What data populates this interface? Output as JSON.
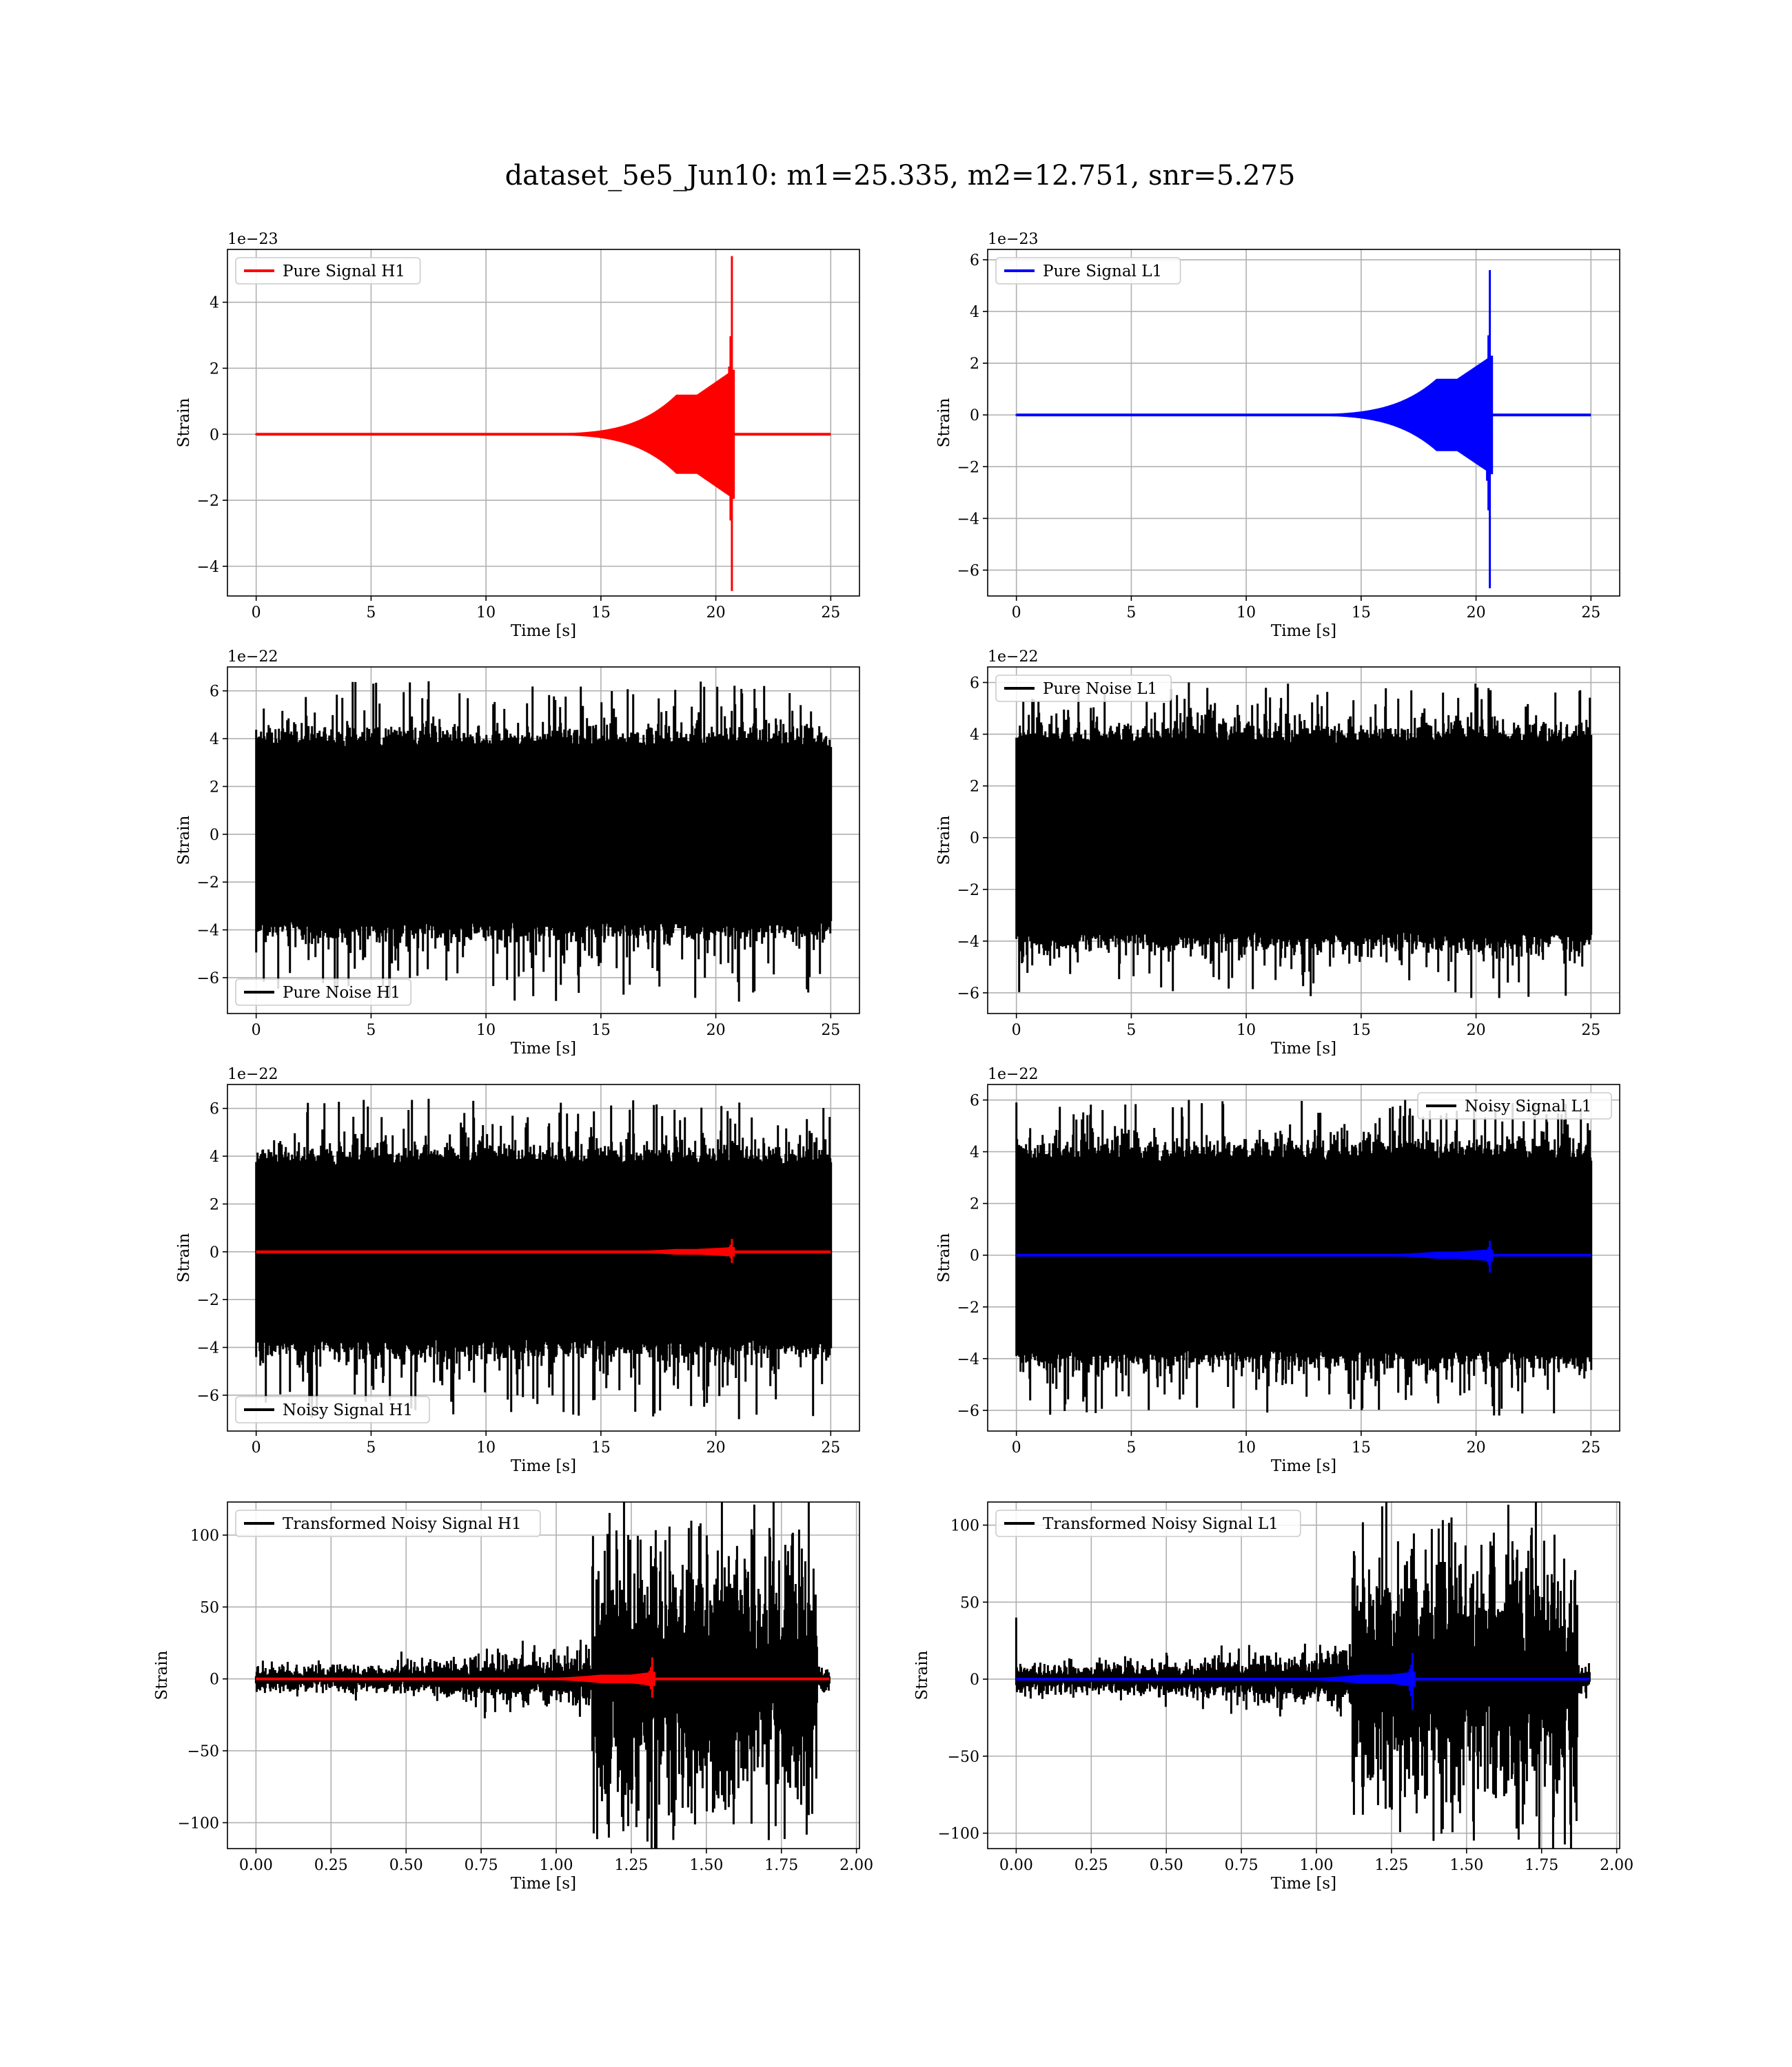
{
  "figure": {
    "title": "dataset_5e5_Jun10: m1=25.335, m2=12.751, snr=5.275"
  },
  "colors": {
    "h1_signal": "#ff0000",
    "l1_signal": "#0000ff",
    "noise": "#000000",
    "grid": "#b0b0b0"
  },
  "chart_data": [
    {
      "id": "h1-pure-signal",
      "type": "line",
      "xlabel": "Time [s]",
      "ylabel": "Strain",
      "offset_text": "1e−23",
      "xlim": [
        -1.25,
        26.25
      ],
      "ylim": [
        -4.9,
        5.6
      ],
      "xticks": [
        0,
        5,
        10,
        15,
        20,
        25
      ],
      "xtick_labels": [
        "0",
        "5",
        "10",
        "15",
        "20",
        "25"
      ],
      "yticks": [
        -4,
        -2,
        0,
        2,
        4
      ],
      "ytick_labels": [
        "−4",
        "−2",
        "0",
        "2",
        "4"
      ],
      "grid": true,
      "legend_loc": "upper left",
      "series": [
        {
          "name": "Pure Signal H1",
          "color": "#ff0000",
          "kind": "chirp",
          "t_start": 0,
          "t_end": 25,
          "t_merge": 20.7,
          "amp_max": 5.4,
          "amp_min": 4.75,
          "plateau_amp": 1.2,
          "plateau_range": [
            18.3,
            19.2
          ]
        }
      ]
    },
    {
      "id": "l1-pure-signal",
      "type": "line",
      "xlabel": "Time [s]",
      "ylabel": "Strain",
      "offset_text": "1e−23",
      "xlim": [
        -1.25,
        26.25
      ],
      "ylim": [
        -7.0,
        6.4
      ],
      "xticks": [
        0,
        5,
        10,
        15,
        20,
        25
      ],
      "xtick_labels": [
        "0",
        "5",
        "10",
        "15",
        "20",
        "25"
      ],
      "yticks": [
        -6,
        -4,
        -2,
        0,
        2,
        4,
        6
      ],
      "ytick_labels": [
        "−6",
        "−4",
        "−2",
        "0",
        "2",
        "4",
        "6"
      ],
      "grid": true,
      "legend_loc": "upper left",
      "series": [
        {
          "name": "Pure Signal L1",
          "color": "#0000ff",
          "kind": "chirp",
          "t_start": 0,
          "t_end": 25,
          "t_merge": 20.6,
          "amp_max": 5.6,
          "amp_min": 6.7,
          "plateau_amp": 1.4,
          "plateau_range": [
            18.3,
            19.2
          ]
        }
      ]
    },
    {
      "id": "h1-pure-noise",
      "type": "line",
      "xlabel": "Time [s]",
      "ylabel": "Strain",
      "offset_text": "1e−22",
      "xlim": [
        -1.25,
        26.25
      ],
      "ylim": [
        -7.5,
        7.0
      ],
      "xticks": [
        0,
        5,
        10,
        15,
        20,
        25
      ],
      "xtick_labels": [
        "0",
        "5",
        "10",
        "15",
        "20",
        "25"
      ],
      "yticks": [
        -6,
        -4,
        -2,
        0,
        2,
        4,
        6
      ],
      "ytick_labels": [
        "−6",
        "−4",
        "−2",
        "0",
        "2",
        "4",
        "6"
      ],
      "grid": true,
      "legend_loc": "lower left",
      "series": [
        {
          "name": "Pure Noise H1",
          "color": "#000000",
          "kind": "noise",
          "t_start": 0,
          "t_end": 25,
          "core_amp": 3.8,
          "peak_max": 6.4,
          "peak_min": 7.0
        }
      ]
    },
    {
      "id": "l1-pure-noise",
      "type": "line",
      "xlabel": "Time [s]",
      "ylabel": "Strain",
      "offset_text": "1e−22",
      "xlim": [
        -1.25,
        26.25
      ],
      "ylim": [
        -6.8,
        6.6
      ],
      "xticks": [
        0,
        5,
        10,
        15,
        20,
        25
      ],
      "xtick_labels": [
        "0",
        "5",
        "10",
        "15",
        "20",
        "25"
      ],
      "yticks": [
        -6,
        -4,
        -2,
        0,
        2,
        4,
        6
      ],
      "ytick_labels": [
        "−6",
        "−4",
        "−2",
        "0",
        "2",
        "4",
        "6"
      ],
      "grid": true,
      "legend_loc": "upper left",
      "series": [
        {
          "name": "Pure Noise L1",
          "color": "#000000",
          "kind": "noise",
          "t_start": 0,
          "t_end": 25,
          "core_amp": 3.8,
          "peak_max": 6.0,
          "peak_min": 6.2
        }
      ]
    },
    {
      "id": "h1-noisy-signal",
      "type": "line",
      "xlabel": "Time [s]",
      "ylabel": "Strain",
      "offset_text": "1e−22",
      "xlim": [
        -1.25,
        26.25
      ],
      "ylim": [
        -7.5,
        7.0
      ],
      "xticks": [
        0,
        5,
        10,
        15,
        20,
        25
      ],
      "xtick_labels": [
        "0",
        "5",
        "10",
        "15",
        "20",
        "25"
      ],
      "yticks": [
        -6,
        -4,
        -2,
        0,
        2,
        4,
        6
      ],
      "ytick_labels": [
        "−6",
        "−4",
        "−2",
        "0",
        "2",
        "4",
        "6"
      ],
      "grid": true,
      "legend_loc": "lower left",
      "series": [
        {
          "name": "Noisy Signal H1",
          "color": "#000000",
          "kind": "noise",
          "t_start": 0,
          "t_end": 25,
          "core_amp": 3.8,
          "peak_max": 6.4,
          "peak_min": 7.0
        },
        {
          "color": "#ff0000",
          "kind": "chirp",
          "t_start": 0,
          "t_end": 25,
          "t_merge": 20.7,
          "amp_max": 0.54,
          "amp_min": 0.47,
          "plateau_amp": 0.12,
          "plateau_range": [
            18.3,
            19.2
          ]
        }
      ]
    },
    {
      "id": "l1-noisy-signal",
      "type": "line",
      "xlabel": "Time [s]",
      "ylabel": "Strain",
      "offset_text": "1e−22",
      "xlim": [
        -1.25,
        26.25
      ],
      "ylim": [
        -6.8,
        6.6
      ],
      "xticks": [
        0,
        5,
        10,
        15,
        20,
        25
      ],
      "xtick_labels": [
        "0",
        "5",
        "10",
        "15",
        "20",
        "25"
      ],
      "yticks": [
        -6,
        -4,
        -2,
        0,
        2,
        4,
        6
      ],
      "ytick_labels": [
        "−6",
        "−4",
        "−2",
        "0",
        "2",
        "4",
        "6"
      ],
      "grid": true,
      "legend_loc": "upper right",
      "series": [
        {
          "name": "Noisy Signal L1",
          "color": "#000000",
          "kind": "noise",
          "t_start": 0,
          "t_end": 25,
          "core_amp": 3.8,
          "peak_max": 6.0,
          "peak_min": 6.2
        },
        {
          "color": "#0000ff",
          "kind": "chirp",
          "t_start": 0,
          "t_end": 25,
          "t_merge": 20.6,
          "amp_max": 0.56,
          "amp_min": 0.67,
          "plateau_amp": 0.14,
          "plateau_range": [
            18.3,
            19.2
          ]
        }
      ]
    },
    {
      "id": "h1-transformed",
      "type": "line",
      "xlabel": "Time [s]",
      "ylabel": "Strain",
      "offset_text": "",
      "xlim": [
        -0.095,
        2.01
      ],
      "ylim": [
        -118,
        123
      ],
      "xticks": [
        0,
        0.25,
        0.5,
        0.75,
        1.0,
        1.25,
        1.5,
        1.75,
        2.0
      ],
      "xtick_labels": [
        "0.00",
        "0.25",
        "0.50",
        "0.75",
        "1.00",
        "1.25",
        "1.50",
        "1.75",
        "2.00"
      ],
      "yticks": [
        -100,
        -50,
        0,
        50,
        100
      ],
      "ytick_labels": [
        "−100",
        "−50",
        "0",
        "50",
        "100"
      ],
      "grid": true,
      "legend_loc": "upper left",
      "series": [
        {
          "name": "Transformed Noisy Signal H1",
          "color": "#000000",
          "kind": "whitened",
          "t_start": 0,
          "t_end": 1.91,
          "low_amp": 5,
          "mid_amp": 10,
          "high_amp": 45,
          "jump_t": 1.12,
          "end_t": 1.87,
          "peak_max": 110,
          "peak_min": 112
        },
        {
          "color": "#ff0000",
          "kind": "chirp",
          "t_start": 0,
          "t_end": 1.91,
          "t_merge": 1.32,
          "amp_max": 15,
          "amp_min": 13,
          "plateau_amp": 3,
          "plateau_range": [
            1.15,
            1.25
          ]
        }
      ]
    },
    {
      "id": "l1-transformed",
      "type": "line",
      "xlabel": "Time [s]",
      "ylabel": "Strain",
      "offset_text": "",
      "xlim": [
        -0.095,
        2.01
      ],
      "ylim": [
        -110,
        115
      ],
      "xticks": [
        0,
        0.25,
        0.5,
        0.75,
        1.0,
        1.25,
        1.5,
        1.75,
        2.0
      ],
      "xtick_labels": [
        "0.00",
        "0.25",
        "0.50",
        "0.75",
        "1.00",
        "1.25",
        "1.50",
        "1.75",
        "2.00"
      ],
      "yticks": [
        -100,
        -50,
        0,
        50,
        100
      ],
      "ytick_labels": [
        "−100",
        "−50",
        "0",
        "50",
        "100"
      ],
      "grid": true,
      "legend_loc": "upper left",
      "series": [
        {
          "name": "Transformed Noisy Signal L1",
          "color": "#000000",
          "kind": "whitened",
          "t_start": 0,
          "t_end": 1.91,
          "low_amp": 5,
          "mid_amp": 10,
          "high_amp": 40,
          "jump_t": 1.12,
          "end_t": 1.87,
          "peak_max": 105,
          "peak_min": 105,
          "spike_start": 40
        },
        {
          "color": "#0000ff",
          "kind": "chirp",
          "t_start": 0,
          "t_end": 1.91,
          "t_merge": 1.32,
          "amp_max": 17,
          "amp_min": 20,
          "plateau_amp": 3,
          "plateau_range": [
            1.15,
            1.25
          ]
        }
      ]
    }
  ]
}
